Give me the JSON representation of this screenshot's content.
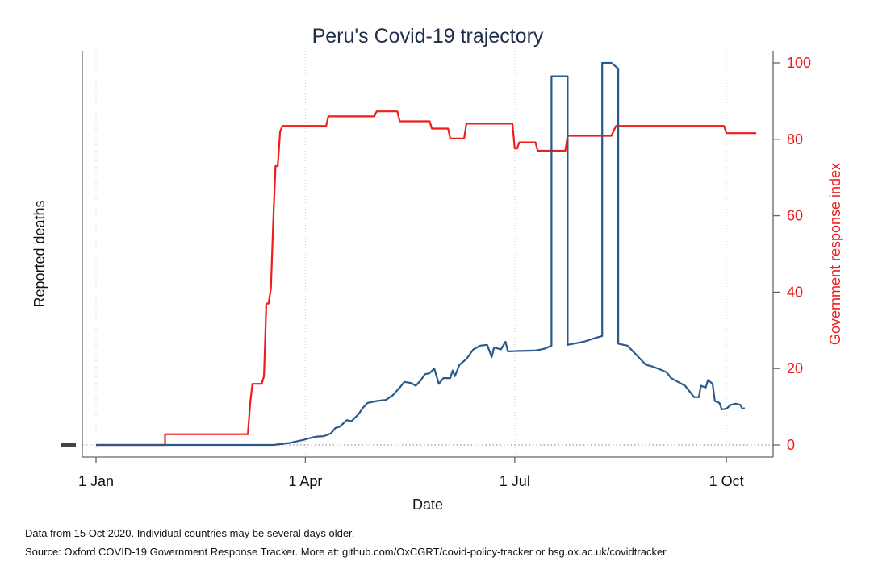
{
  "chart_data": {
    "type": "line",
    "title": "Peru's Covid-19 trajectory",
    "xlabel": "Date",
    "ylabel_left": "Reported deaths",
    "ylabel_right": "Government response index",
    "x_tick_labels": [
      "1 Jan",
      "1 Apr",
      "1 Jul",
      "1 Oct"
    ],
    "x_ticks": [
      "2020-01-01",
      "2020-04-01",
      "2020-07-01",
      "2020-10-01"
    ],
    "xlim": [
      "2020-01-01",
      "2020-10-15"
    ],
    "y_right_ticks": [
      0,
      20,
      40,
      60,
      80,
      100
    ],
    "y_right_lim": [
      0,
      100
    ],
    "grid": "vertical dotted at x ticks; dotted horizontal at 0",
    "colors": {
      "deaths": "#2b5a8a",
      "response_index": "#ee1c1c",
      "axis": "#666666",
      "grid": "#c8c8c8",
      "title": "#1e2d4a"
    },
    "series": [
      {
        "axis": "right",
        "points": [
          [
            "2020-01-01",
            0
          ],
          [
            "2020-01-31",
            0
          ],
          [
            "2020-01-31",
            2.8
          ],
          [
            "2020-03-07",
            2.8
          ],
          [
            "2020-03-08",
            11
          ],
          [
            "2020-03-09",
            16
          ],
          [
            "2020-03-13",
            16
          ],
          [
            "2020-03-14",
            18
          ],
          [
            "2020-03-15",
            37
          ],
          [
            "2020-03-16",
            37
          ],
          [
            "2020-03-17",
            41
          ],
          [
            "2020-03-18",
            58
          ],
          [
            "2020-03-19",
            73
          ],
          [
            "2020-03-20",
            73
          ],
          [
            "2020-03-21",
            82
          ],
          [
            "2020-03-22",
            83.5
          ],
          [
            "2020-04-10",
            83.5
          ],
          [
            "2020-04-11",
            86
          ],
          [
            "2020-05-01",
            86
          ],
          [
            "2020-05-02",
            87.3
          ],
          [
            "2020-05-11",
            87.3
          ],
          [
            "2020-05-12",
            84.7
          ],
          [
            "2020-05-25",
            84.7
          ],
          [
            "2020-05-26",
            82.8
          ],
          [
            "2020-06-02",
            82.8
          ],
          [
            "2020-06-03",
            80.2
          ],
          [
            "2020-06-09",
            80.2
          ],
          [
            "2020-06-10",
            84.1
          ],
          [
            "2020-06-30",
            84.1
          ],
          [
            "2020-07-01",
            77.6
          ],
          [
            "2020-07-02",
            77.6
          ],
          [
            "2020-07-03",
            79.2
          ],
          [
            "2020-07-10",
            79.2
          ],
          [
            "2020-07-11",
            77.0
          ],
          [
            "2020-07-23",
            77.0
          ],
          [
            "2020-07-24",
            80.9
          ],
          [
            "2020-08-12",
            80.9
          ],
          [
            "2020-08-14",
            83.5
          ],
          [
            "2020-09-30",
            83.5
          ],
          [
            "2020-10-01",
            81.6
          ],
          [
            "2020-10-14",
            81.6
          ]
        ]
      },
      {
        "axis": "left",
        "points": [
          [
            "2020-01-01",
            0
          ],
          [
            "2020-03-18",
            0
          ],
          [
            "2020-03-25",
            0.5
          ],
          [
            "2020-03-31",
            1.3
          ],
          [
            "2020-04-03",
            1.8
          ],
          [
            "2020-04-06",
            2.2
          ],
          [
            "2020-04-09",
            2.3
          ],
          [
            "2020-04-12",
            3.0
          ],
          [
            "2020-04-14",
            4.4
          ],
          [
            "2020-04-16",
            4.8
          ],
          [
            "2020-04-19",
            6.5
          ],
          [
            "2020-04-21",
            6.2
          ],
          [
            "2020-04-24",
            8.0
          ],
          [
            "2020-04-26",
            9.7
          ],
          [
            "2020-04-28",
            11.0
          ],
          [
            "2020-05-02",
            11.5
          ],
          [
            "2020-05-06",
            11.8
          ],
          [
            "2020-05-09",
            13.0
          ],
          [
            "2020-05-12",
            15.0
          ],
          [
            "2020-05-14",
            16.5
          ],
          [
            "2020-05-17",
            16.2
          ],
          [
            "2020-05-19",
            15.5
          ],
          [
            "2020-05-21",
            16.8
          ],
          [
            "2020-05-23",
            18.5
          ],
          [
            "2020-05-25",
            18.8
          ],
          [
            "2020-05-27",
            20.0
          ],
          [
            "2020-05-28",
            18.0
          ],
          [
            "2020-05-29",
            16.0
          ],
          [
            "2020-05-31",
            17.5
          ],
          [
            "2020-06-03",
            17.5
          ],
          [
            "2020-06-04",
            19.5
          ],
          [
            "2020-06-05",
            18.0
          ],
          [
            "2020-06-07",
            21.0
          ],
          [
            "2020-06-10",
            22.5
          ],
          [
            "2020-06-13",
            25.0
          ],
          [
            "2020-06-16",
            26.0
          ],
          [
            "2020-06-19",
            26.2
          ],
          [
            "2020-06-21",
            23.0
          ],
          [
            "2020-06-22",
            25.5
          ],
          [
            "2020-06-25",
            25.0
          ],
          [
            "2020-06-27",
            27.0
          ],
          [
            "2020-06-28",
            24.5
          ],
          [
            "2020-07-03",
            24.6
          ],
          [
            "2020-07-10",
            24.7
          ],
          [
            "2020-07-14",
            25.2
          ],
          [
            "2020-07-17",
            26.0
          ],
          [
            "2020-07-17",
            96.5
          ],
          [
            "2020-07-24",
            96.5
          ],
          [
            "2020-07-24",
            26.2
          ],
          [
            "2020-07-31",
            27.0
          ],
          [
            "2020-08-05",
            28.0
          ],
          [
            "2020-08-08",
            28.5
          ],
          [
            "2020-08-08",
            100
          ],
          [
            "2020-08-12",
            100
          ],
          [
            "2020-08-15",
            98.5
          ],
          [
            "2020-08-15",
            26.5
          ],
          [
            "2020-08-19",
            26.0
          ],
          [
            "2020-08-23",
            23.5
          ],
          [
            "2020-08-27",
            21.0
          ],
          [
            "2020-08-30",
            20.5
          ],
          [
            "2020-09-02",
            19.8
          ],
          [
            "2020-09-05",
            19.0
          ],
          [
            "2020-09-07",
            17.5
          ],
          [
            "2020-09-10",
            16.5
          ],
          [
            "2020-09-13",
            15.5
          ],
          [
            "2020-09-15",
            14.0
          ],
          [
            "2020-09-17",
            12.5
          ],
          [
            "2020-09-19",
            12.5
          ],
          [
            "2020-09-20",
            15.5
          ],
          [
            "2020-09-22",
            15.0
          ],
          [
            "2020-09-23",
            17.0
          ],
          [
            "2020-09-25",
            16.0
          ],
          [
            "2020-09-26",
            11.5
          ],
          [
            "2020-09-28",
            11.0
          ],
          [
            "2020-09-29",
            9.3
          ],
          [
            "2020-10-01",
            9.5
          ],
          [
            "2020-10-03",
            10.5
          ],
          [
            "2020-10-05",
            10.8
          ],
          [
            "2020-10-07",
            10.5
          ],
          [
            "2020-10-08",
            9.5
          ],
          [
            "2020-10-09",
            9.6
          ]
        ]
      }
    ]
  },
  "footnotes": [
    "Data from 15 Oct 2020. Individual countries may be several days older.",
    "Source: Oxford COVID-19 Government Response Tracker. More at: github.com/OxCGRT/covid-policy-tracker or bsg.ox.ac.uk/covidtracker"
  ]
}
